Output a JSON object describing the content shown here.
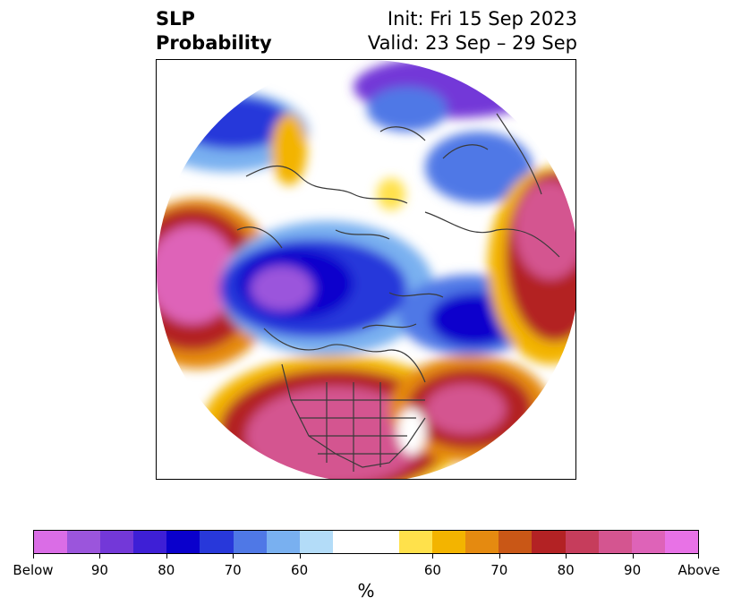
{
  "title": {
    "left_line1": "SLP",
    "left_line2": "Probability",
    "right_line1": "Init: Fri 15 Sep 2023",
    "right_line2": "Valid: 23 Sep – 29 Sep"
  },
  "colorbar": {
    "unit": "%",
    "colors": [
      "#da6de6",
      "#9b55dc",
      "#7338d8",
      "#3e1fd6",
      "#0a00cc",
      "#2838da",
      "#4f78e6",
      "#79b0f0",
      "#b3dcf8",
      "#ffffff",
      "#ffffff",
      "#ffe14b",
      "#f3b400",
      "#e58a10",
      "#c95716",
      "#b32224",
      "#c63d5c",
      "#d45590",
      "#de63b8",
      "#e872e6"
    ],
    "tick_labels": [
      "Below",
      "90",
      "80",
      "70",
      "60",
      "60",
      "70",
      "80",
      "90",
      "Above"
    ]
  },
  "map": {
    "projection": "north polar stereographic",
    "palette": {
      "above_high": "#de63b8",
      "above_mid": "#b32224",
      "above_low": "#f3b400",
      "below_high": "#7338d8",
      "below_mid": "#0a00cc",
      "below_low": "#79b0f0",
      "neutral": "#ffffff",
      "coastline": "#3a3a3a"
    }
  }
}
